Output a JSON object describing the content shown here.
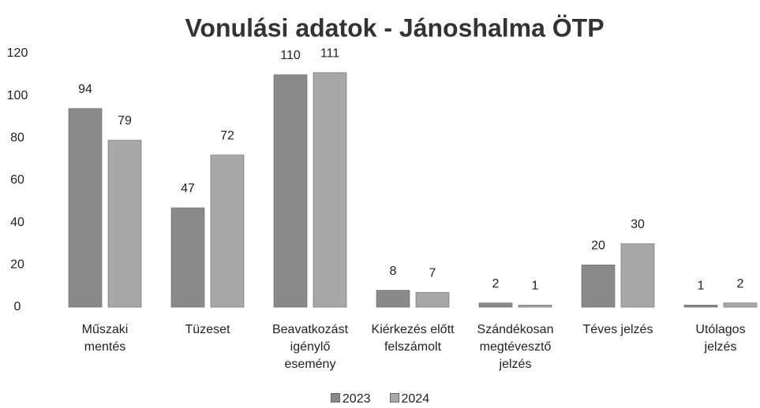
{
  "chart_data": {
    "type": "bar",
    "title": "Vonulási adatok - Jánoshalma ÖTP",
    "categories": [
      "Műszaki mentés",
      "Tüzeset",
      "Beavatkozást igénylő esemény",
      "Kiérkezés előtt felszámolt",
      "Szándékosan megtévesztő jelzés",
      "Téves jelzés",
      "Utólagos jelzés"
    ],
    "series": [
      {
        "name": "2023",
        "color": "#8a8a8a",
        "values": [
          94,
          47,
          110,
          8,
          2,
          20,
          1
        ]
      },
      {
        "name": "2024",
        "color": "#a8a8a8",
        "values": [
          79,
          72,
          111,
          7,
          1,
          30,
          2
        ]
      }
    ],
    "ylim": [
      0,
      120
    ],
    "yticks": [
      0,
      20,
      40,
      60,
      80,
      100,
      120
    ],
    "grid": false,
    "legend": "bottom"
  }
}
